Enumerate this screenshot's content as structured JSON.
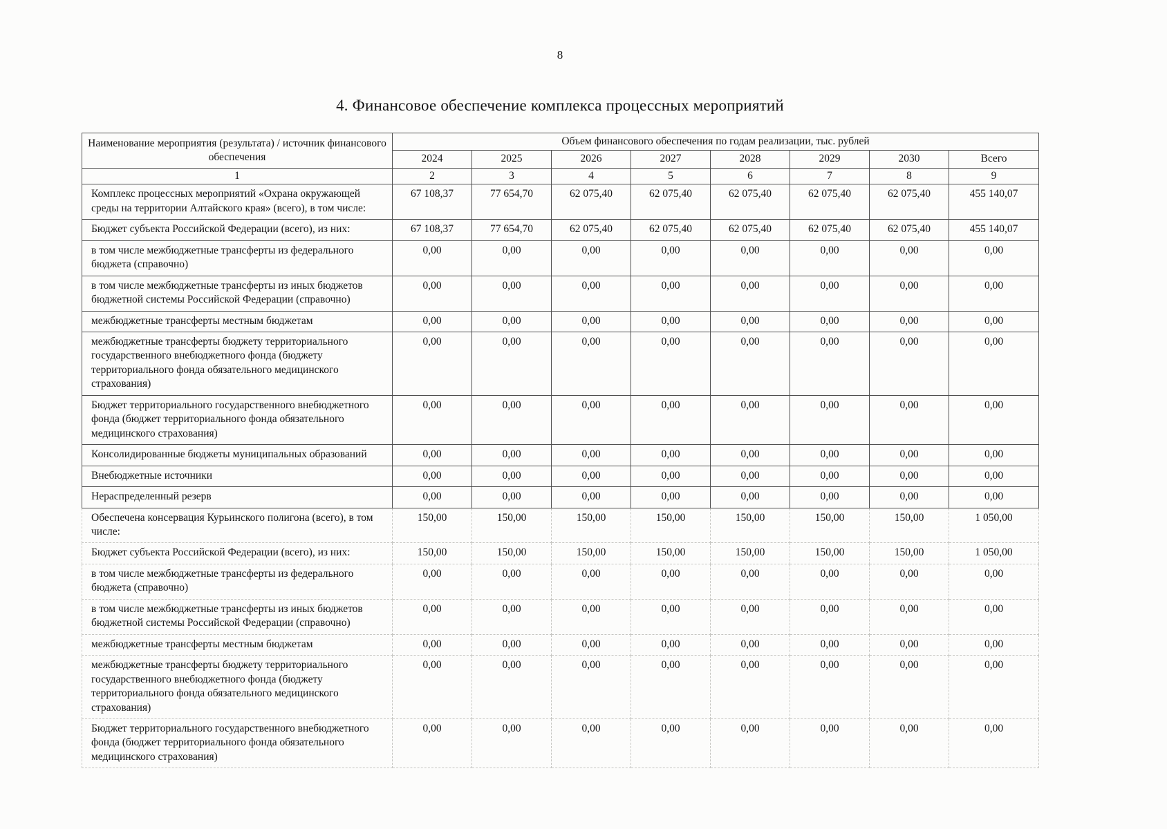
{
  "page": {
    "number": "8",
    "title": "4. Финансовое обеспечение комплекса процессных мероприятий"
  },
  "table": {
    "header": {
      "name_column": "Наименование мероприятия (результата) / источник финансового обеспечения",
      "group_column": "Объем финансового обеспечения по годам реализации, тыс. рублей",
      "years": [
        "2024",
        "2025",
        "2026",
        "2027",
        "2028",
        "2029",
        "2030",
        "Всего"
      ],
      "indexes": [
        "1",
        "2",
        "3",
        "4",
        "5",
        "6",
        "7",
        "8",
        "9"
      ]
    },
    "rows": [
      {
        "section": "top",
        "name": "Комплекс процессных мероприятий «Охрана окружающей среды на территории Алтайского края» (всего), в том числе:",
        "values": [
          "67 108,37",
          "77 654,70",
          "62 075,40",
          "62 075,40",
          "62 075,40",
          "62 075,40",
          "62 075,40",
          "455 140,07"
        ]
      },
      {
        "section": "top",
        "name": "Бюджет субъекта Российской Федерации (всего), из них:",
        "values": [
          "67 108,37",
          "77 654,70",
          "62 075,40",
          "62 075,40",
          "62 075,40",
          "62 075,40",
          "62 075,40",
          "455 140,07"
        ]
      },
      {
        "section": "top",
        "name": "в том числе межбюджетные трансферты из федерального бюджета (справочно)",
        "values": [
          "0,00",
          "0,00",
          "0,00",
          "0,00",
          "0,00",
          "0,00",
          "0,00",
          "0,00"
        ]
      },
      {
        "section": "top",
        "name": "в том числе межбюджетные трансферты из иных бюджетов бюджетной системы Российской Федерации (справочно)",
        "values": [
          "0,00",
          "0,00",
          "0,00",
          "0,00",
          "0,00",
          "0,00",
          "0,00",
          "0,00"
        ]
      },
      {
        "section": "top",
        "name": "межбюджетные трансферты местным бюджетам",
        "values": [
          "0,00",
          "0,00",
          "0,00",
          "0,00",
          "0,00",
          "0,00",
          "0,00",
          "0,00"
        ]
      },
      {
        "section": "top",
        "name": "межбюджетные трансферты бюджету территориального государственного внебюджетного фонда (бюджету территориального фонда обязательного медицинского страхования)",
        "values": [
          "0,00",
          "0,00",
          "0,00",
          "0,00",
          "0,00",
          "0,00",
          "0,00",
          "0,00"
        ]
      },
      {
        "section": "top",
        "name": "Бюджет территориального государственного внебюджетного фонда (бюджет территориального фонда обязательного медицинского страхования)",
        "values": [
          "0,00",
          "0,00",
          "0,00",
          "0,00",
          "0,00",
          "0,00",
          "0,00",
          "0,00"
        ]
      },
      {
        "section": "top",
        "name": "Консолидированные бюджеты муниципальных образований",
        "values": [
          "0,00",
          "0,00",
          "0,00",
          "0,00",
          "0,00",
          "0,00",
          "0,00",
          "0,00"
        ]
      },
      {
        "section": "top tall",
        "name": "Внебюджетные источники",
        "values": [
          "0,00",
          "0,00",
          "0,00",
          "0,00",
          "0,00",
          "0,00",
          "0,00",
          "0,00"
        ]
      },
      {
        "section": "top tall",
        "name": "Нераспределенный резерв",
        "values": [
          "0,00",
          "0,00",
          "0,00",
          "0,00",
          "0,00",
          "0,00",
          "0,00",
          "0,00"
        ]
      },
      {
        "section": "bottom",
        "name": "Обеспечена консервация Курьинского полигона (всего), в том числе:",
        "values": [
          "150,00",
          "150,00",
          "150,00",
          "150,00",
          "150,00",
          "150,00",
          "150,00",
          "1 050,00"
        ]
      },
      {
        "section": "bottom",
        "name": "Бюджет субъекта Российской Федерации (всего), из них:",
        "values": [
          "150,00",
          "150,00",
          "150,00",
          "150,00",
          "150,00",
          "150,00",
          "150,00",
          "1 050,00"
        ]
      },
      {
        "section": "bottom",
        "name": "в том числе межбюджетные трансферты из федерального бюджета (справочно)",
        "values": [
          "0,00",
          "0,00",
          "0,00",
          "0,00",
          "0,00",
          "0,00",
          "0,00",
          "0,00"
        ]
      },
      {
        "section": "bottom",
        "name": "в том числе межбюджетные трансферты из иных бюджетов бюджетной системы Российской Федерации (справочно)",
        "values": [
          "0,00",
          "0,00",
          "0,00",
          "0,00",
          "0,00",
          "0,00",
          "0,00",
          "0,00"
        ]
      },
      {
        "section": "bottom",
        "name": "межбюджетные трансферты местным бюджетам",
        "values": [
          "0,00",
          "0,00",
          "0,00",
          "0,00",
          "0,00",
          "0,00",
          "0,00",
          "0,00"
        ]
      },
      {
        "section": "bottom",
        "name": "межбюджетные трансферты бюджету территориального государственного внебюджетного фонда (бюджету территориального фонда обязательного медицинского страхования)",
        "values": [
          "0,00",
          "0,00",
          "0,00",
          "0,00",
          "0,00",
          "0,00",
          "0,00",
          "0,00"
        ]
      },
      {
        "section": "bottom",
        "name": "Бюджет территориального государственного внебюджетного фонда (бюджет территориального фонда обязательного медицинского страхования)",
        "values": [
          "0,00",
          "0,00",
          "0,00",
          "0,00",
          "0,00",
          "0,00",
          "0,00",
          "0,00"
        ]
      }
    ]
  }
}
